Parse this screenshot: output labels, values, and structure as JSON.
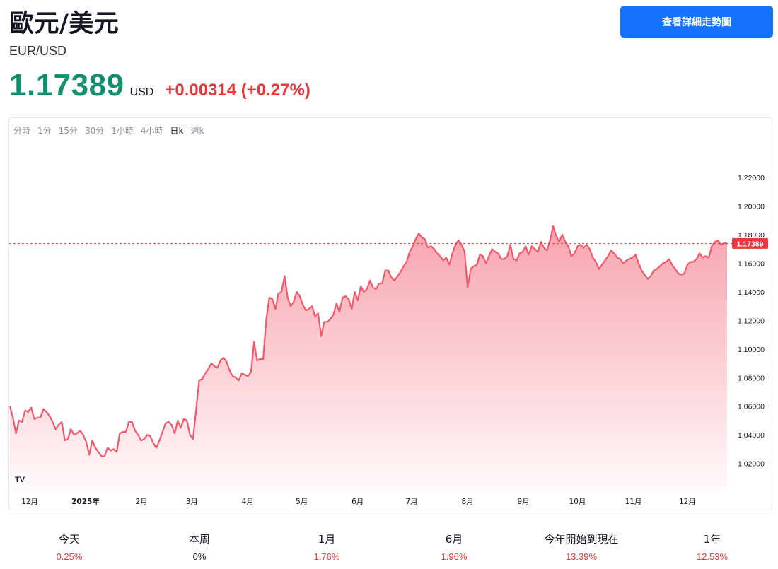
{
  "header": {
    "title": "歐元/美元",
    "symbol": "EUR/USD",
    "cta_label": "查看詳細走勢圖"
  },
  "quote": {
    "price": "1.17389",
    "currency": "USD",
    "change": "+0.00314 (+0.27%)"
  },
  "intervals": [
    {
      "label": "分時",
      "active": false
    },
    {
      "label": "1分",
      "active": false
    },
    {
      "label": "15分",
      "active": false
    },
    {
      "label": "30分",
      "active": false
    },
    {
      "label": "1小時",
      "active": false
    },
    {
      "label": "4小時",
      "active": false
    },
    {
      "label": "日k",
      "active": true
    },
    {
      "label": "週k",
      "active": false
    }
  ],
  "colors": {
    "up": "#149071",
    "down": "#e5393b",
    "line": "#f0596b",
    "cta": "#1472ff"
  },
  "chart_data": {
    "type": "area",
    "title": "",
    "xlabel": "",
    "ylabel": "",
    "ylim": [
      1.0,
      1.23
    ],
    "y_ticks": [
      "1.22000",
      "1.20000",
      "1.18000",
      "1.16000",
      "1.14000",
      "1.12000",
      "1.10000",
      "1.08000",
      "1.06000",
      "1.04000",
      "1.02000"
    ],
    "x_ticks": [
      "12月",
      "2025年",
      "2月",
      "3月",
      "4月",
      "5月",
      "6月",
      "7月",
      "8月",
      "9月",
      "10月",
      "11月",
      "12月"
    ],
    "last_price_label": "1.17389",
    "last_price": 1.17389,
    "grid": false,
    "series": [
      {
        "x_start": "2024-11-20",
        "x_end": "2025-12-23",
        "values": [
          1.06,
          1.052,
          1.041,
          1.05,
          1.049,
          1.057,
          1.056,
          1.059,
          1.051,
          1.052,
          1.052,
          1.058,
          1.056,
          1.053,
          1.049,
          1.044,
          1.047,
          1.049,
          1.036,
          1.037,
          1.044,
          1.04,
          1.041,
          1.043,
          1.04,
          1.035,
          1.026,
          1.036,
          1.031,
          1.028,
          1.025,
          1.025,
          1.031,
          1.029,
          1.03,
          1.028,
          1.041,
          1.042,
          1.042,
          1.049,
          1.049,
          1.043,
          1.04,
          1.036,
          1.037,
          1.04,
          1.039,
          1.034,
          1.031,
          1.036,
          1.042,
          1.048,
          1.049,
          1.047,
          1.041,
          1.05,
          1.045,
          1.051,
          1.05,
          1.04,
          1.037,
          1.057,
          1.078,
          1.079,
          1.083,
          1.086,
          1.09,
          1.088,
          1.087,
          1.092,
          1.094,
          1.091,
          1.085,
          1.081,
          1.08,
          1.078,
          1.083,
          1.082,
          1.081,
          1.084,
          1.105,
          1.092,
          1.093,
          1.093,
          1.121,
          1.136,
          1.135,
          1.128,
          1.139,
          1.14,
          1.151,
          1.136,
          1.13,
          1.133,
          1.14,
          1.137,
          1.131,
          1.127,
          1.128,
          1.13,
          1.123,
          1.125,
          1.109,
          1.119,
          1.119,
          1.121,
          1.124,
          1.132,
          1.126,
          1.136,
          1.137,
          1.135,
          1.128,
          1.14,
          1.134,
          1.144,
          1.14,
          1.142,
          1.148,
          1.143,
          1.142,
          1.146,
          1.146,
          1.155,
          1.155,
          1.15,
          1.148,
          1.151,
          1.154,
          1.158,
          1.161,
          1.168,
          1.172,
          1.177,
          1.181,
          1.178,
          1.177,
          1.171,
          1.172,
          1.17,
          1.167,
          1.165,
          1.162,
          1.164,
          1.159,
          1.167,
          1.173,
          1.176,
          1.173,
          1.168,
          1.143,
          1.156,
          1.158,
          1.159,
          1.166,
          1.165,
          1.16,
          1.165,
          1.17,
          1.168,
          1.167,
          1.163,
          1.163,
          1.165,
          1.173,
          1.163,
          1.162,
          1.167,
          1.168,
          1.172,
          1.166,
          1.172,
          1.17,
          1.168,
          1.175,
          1.171,
          1.169,
          1.176,
          1.186,
          1.179,
          1.175,
          1.18,
          1.175,
          1.172,
          1.165,
          1.167,
          1.172,
          1.173,
          1.171,
          1.173,
          1.17,
          1.164,
          1.161,
          1.156,
          1.159,
          1.162,
          1.165,
          1.169,
          1.167,
          1.164,
          1.163,
          1.16,
          1.162,
          1.163,
          1.164,
          1.166,
          1.16,
          1.155,
          1.152,
          1.149,
          1.151,
          1.155,
          1.156,
          1.158,
          1.16,
          1.161,
          1.163,
          1.159,
          1.156,
          1.153,
          1.152,
          1.153,
          1.159,
          1.161,
          1.161,
          1.163,
          1.167,
          1.164,
          1.165,
          1.164,
          1.172,
          1.175,
          1.176,
          1.173,
          1.174,
          1.17389
        ]
      }
    ]
  },
  "stats": [
    {
      "label": "今天",
      "value": "0.25%",
      "tone": "down"
    },
    {
      "label": "本周",
      "value": "0%",
      "tone": "neutral"
    },
    {
      "label": "1月",
      "value": "1.76%",
      "tone": "down"
    },
    {
      "label": "6月",
      "value": "1.96%",
      "tone": "down"
    },
    {
      "label": "今年開始到現在",
      "value": "13.39%",
      "tone": "down"
    },
    {
      "label": "1年",
      "value": "12.53%",
      "tone": "down"
    }
  ]
}
